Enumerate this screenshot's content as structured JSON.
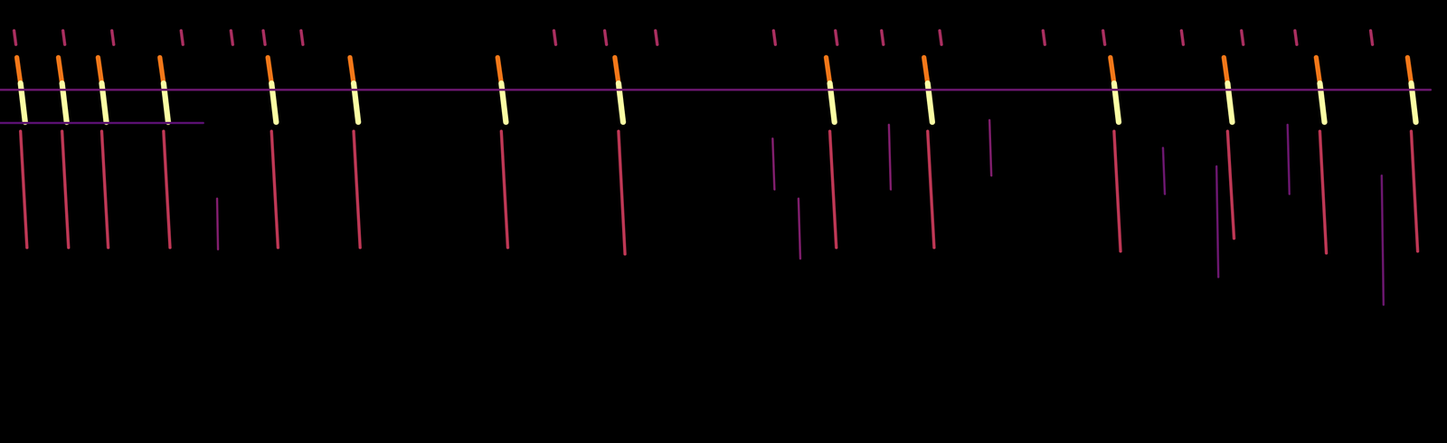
{
  "chart_data": {
    "type": "spectrogram",
    "tick_labels": false,
    "grid": false,
    "color": "inferno",
    "xlim": [
      0,
      1568
    ],
    "ylim": [
      0,
      480
    ],
    "zlim": [
      0,
      1
    ],
    "segments": [
      {
        "t0": 18,
        "f0": 418,
        "t1": 22,
        "f1": 390,
        "level": 0.7
      },
      {
        "t0": 22,
        "f0": 390,
        "t1": 27,
        "f1": 348,
        "level": 1
      },
      {
        "t0": 22,
        "f0": 338,
        "t1": 29,
        "f1": 212,
        "level": 0.5
      },
      {
        "t0": 63,
        "f0": 418,
        "t1": 67,
        "f1": 390,
        "level": 0.7
      },
      {
        "t0": 67,
        "f0": 390,
        "t1": 72,
        "f1": 348,
        "level": 1
      },
      {
        "t0": 67,
        "f0": 338,
        "t1": 74,
        "f1": 212,
        "level": 0.5
      },
      {
        "t0": 106,
        "f0": 418,
        "t1": 110,
        "f1": 390,
        "level": 0.7
      },
      {
        "t0": 110,
        "f0": 390,
        "t1": 115,
        "f1": 348,
        "level": 1
      },
      {
        "t0": 110,
        "f0": 338,
        "t1": 117,
        "f1": 212,
        "level": 0.5
      },
      {
        "t0": 173,
        "f0": 418,
        "t1": 177,
        "f1": 390,
        "level": 0.7
      },
      {
        "t0": 177,
        "f0": 390,
        "t1": 182,
        "f1": 348,
        "level": 1
      },
      {
        "t0": 177,
        "f0": 338,
        "t1": 184,
        "f1": 212,
        "level": 0.5
      },
      {
        "t0": 290,
        "f0": 418,
        "t1": 294,
        "f1": 390,
        "level": 0.7
      },
      {
        "t0": 294,
        "f0": 390,
        "t1": 299,
        "f1": 348,
        "level": 1
      },
      {
        "t0": 294,
        "f0": 338,
        "t1": 301,
        "f1": 212,
        "level": 0.5
      },
      {
        "t0": 379,
        "f0": 418,
        "t1": 383,
        "f1": 390,
        "level": 0.7
      },
      {
        "t0": 383,
        "f0": 390,
        "t1": 388,
        "f1": 348,
        "level": 1
      },
      {
        "t0": 383,
        "f0": 338,
        "t1": 390,
        "f1": 212,
        "level": 0.5
      },
      {
        "t0": 539,
        "f0": 418,
        "t1": 543,
        "f1": 390,
        "level": 0.7
      },
      {
        "t0": 543,
        "f0": 390,
        "t1": 548,
        "f1": 348,
        "level": 1
      },
      {
        "t0": 543,
        "f0": 338,
        "t1": 550,
        "f1": 212,
        "level": 0.5
      },
      {
        "t0": 666,
        "f0": 418,
        "t1": 670,
        "f1": 390,
        "level": 0.7
      },
      {
        "t0": 670,
        "f0": 390,
        "t1": 675,
        "f1": 348,
        "level": 1
      },
      {
        "t0": 670,
        "f0": 338,
        "t1": 677,
        "f1": 205,
        "level": 0.5
      },
      {
        "t0": 895,
        "f0": 418,
        "t1": 899,
        "f1": 390,
        "level": 0.7
      },
      {
        "t0": 899,
        "f0": 390,
        "t1": 904,
        "f1": 348,
        "level": 1
      },
      {
        "t0": 899,
        "f0": 338,
        "t1": 906,
        "f1": 212,
        "level": 0.5
      },
      {
        "t0": 1001,
        "f0": 418,
        "t1": 1005,
        "f1": 390,
        "level": 0.7
      },
      {
        "t0": 1005,
        "f0": 390,
        "t1": 1010,
        "f1": 348,
        "level": 1
      },
      {
        "t0": 1005,
        "f0": 338,
        "t1": 1012,
        "f1": 212,
        "level": 0.5
      },
      {
        "t0": 1203,
        "f0": 418,
        "t1": 1207,
        "f1": 390,
        "level": 0.7
      },
      {
        "t0": 1207,
        "f0": 390,
        "t1": 1212,
        "f1": 348,
        "level": 1
      },
      {
        "t0": 1207,
        "f0": 338,
        "t1": 1214,
        "f1": 208,
        "level": 0.5
      },
      {
        "t0": 1326,
        "f0": 418,
        "t1": 1330,
        "f1": 390,
        "level": 0.7
      },
      {
        "t0": 1330,
        "f0": 390,
        "t1": 1335,
        "f1": 348,
        "level": 1
      },
      {
        "t0": 1330,
        "f0": 338,
        "t1": 1337,
        "f1": 222,
        "level": 0.5
      },
      {
        "t0": 1426,
        "f0": 418,
        "t1": 1430,
        "f1": 390,
        "level": 0.7
      },
      {
        "t0": 1430,
        "f0": 390,
        "t1": 1435,
        "f1": 348,
        "level": 1
      },
      {
        "t0": 1430,
        "f0": 338,
        "t1": 1437,
        "f1": 206,
        "level": 0.5
      },
      {
        "t0": 1525,
        "f0": 418,
        "t1": 1529,
        "f1": 390,
        "level": 0.7
      },
      {
        "t0": 1529,
        "f0": 390,
        "t1": 1534,
        "f1": 348,
        "level": 1
      },
      {
        "t0": 1529,
        "f0": 338,
        "t1": 1536,
        "f1": 208,
        "level": 0.5
      },
      {
        "t0": 15,
        "f0": 447,
        "t1": 17,
        "f1": 432,
        "level": 0.45
      },
      {
        "t0": 68,
        "f0": 447,
        "t1": 70,
        "f1": 432,
        "level": 0.45
      },
      {
        "t0": 121,
        "f0": 447,
        "t1": 123,
        "f1": 432,
        "level": 0.45
      },
      {
        "t0": 196,
        "f0": 447,
        "t1": 198,
        "f1": 432,
        "level": 0.45
      },
      {
        "t0": 250,
        "f0": 447,
        "t1": 252,
        "f1": 432,
        "level": 0.45
      },
      {
        "t0": 285,
        "f0": 447,
        "t1": 287,
        "f1": 432,
        "level": 0.45
      },
      {
        "t0": 326,
        "f0": 447,
        "t1": 328,
        "f1": 432,
        "level": 0.45
      },
      {
        "t0": 600,
        "f0": 447,
        "t1": 602,
        "f1": 432,
        "level": 0.45
      },
      {
        "t0": 655,
        "f0": 447,
        "t1": 657,
        "f1": 432,
        "level": 0.45
      },
      {
        "t0": 710,
        "f0": 447,
        "t1": 712,
        "f1": 432,
        "level": 0.45
      },
      {
        "t0": 838,
        "f0": 447,
        "t1": 840,
        "f1": 432,
        "level": 0.45
      },
      {
        "t0": 905,
        "f0": 447,
        "t1": 907,
        "f1": 432,
        "level": 0.45
      },
      {
        "t0": 955,
        "f0": 447,
        "t1": 957,
        "f1": 432,
        "level": 0.45
      },
      {
        "t0": 1018,
        "f0": 447,
        "t1": 1020,
        "f1": 432,
        "level": 0.45
      },
      {
        "t0": 1130,
        "f0": 447,
        "t1": 1132,
        "f1": 432,
        "level": 0.45
      },
      {
        "t0": 1195,
        "f0": 447,
        "t1": 1197,
        "f1": 432,
        "level": 0.45
      },
      {
        "t0": 1280,
        "f0": 447,
        "t1": 1282,
        "f1": 432,
        "level": 0.45
      },
      {
        "t0": 1345,
        "f0": 447,
        "t1": 1347,
        "f1": 432,
        "level": 0.45
      },
      {
        "t0": 1403,
        "f0": 447,
        "t1": 1405,
        "f1": 432,
        "level": 0.45
      },
      {
        "t0": 1485,
        "f0": 447,
        "t1": 1487,
        "f1": 432,
        "level": 0.45
      },
      {
        "t0": 235,
        "f0": 265,
        "t1": 236,
        "f1": 210,
        "level": 0.35
      },
      {
        "t0": 837,
        "f0": 330,
        "t1": 839,
        "f1": 275,
        "level": 0.35
      },
      {
        "t0": 865,
        "f0": 265,
        "t1": 867,
        "f1": 200,
        "level": 0.35
      },
      {
        "t0": 963,
        "f0": 345,
        "t1": 965,
        "f1": 275,
        "level": 0.35
      },
      {
        "t0": 1072,
        "f0": 350,
        "t1": 1074,
        "f1": 290,
        "level": 0.35
      },
      {
        "t0": 1260,
        "f0": 320,
        "t1": 1262,
        "f1": 270,
        "level": 0.3
      },
      {
        "t0": 1395,
        "f0": 345,
        "t1": 1397,
        "f1": 270,
        "level": 0.3
      },
      {
        "t0": 1497,
        "f0": 290,
        "t1": 1499,
        "f1": 150,
        "level": 0.3
      },
      {
        "t0": 1318,
        "f0": 300,
        "t1": 1320,
        "f1": 180,
        "level": 0.3
      },
      {
        "t0": 0,
        "f0": 383,
        "t1": 1550,
        "f1": 383,
        "level": 0.3
      },
      {
        "t0": 0,
        "f0": 347,
        "t1": 220,
        "f1": 347,
        "level": 0.25
      }
    ]
  }
}
